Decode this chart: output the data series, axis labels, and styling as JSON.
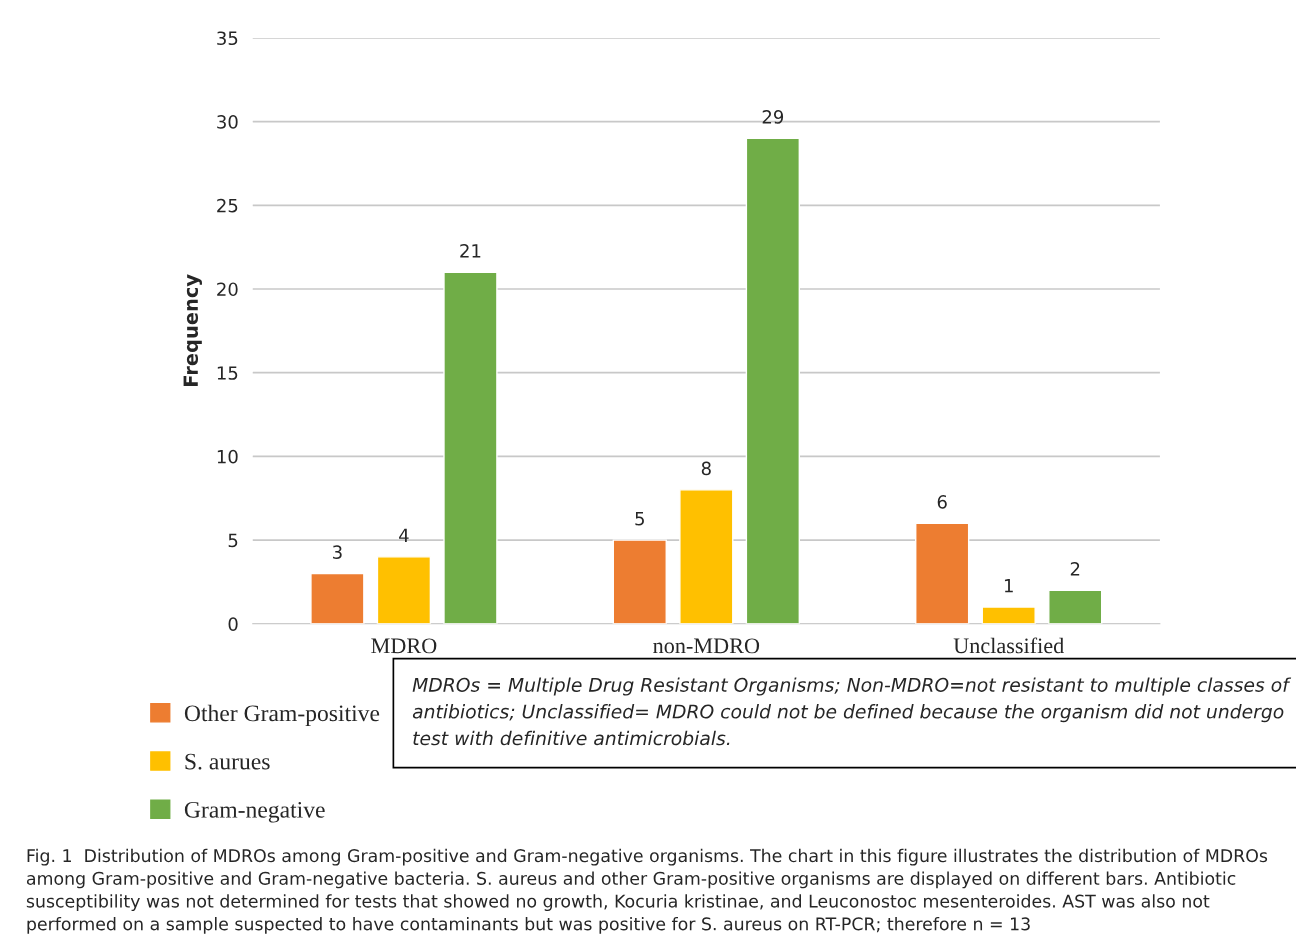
{
  "chart_data": {
    "type": "bar",
    "ylabel": "Frequency",
    "categories": [
      "MDRO",
      "non-MDRO",
      "Unclassified"
    ],
    "series": [
      {
        "name": "Other Gram-positive",
        "color": "#ed7d31",
        "values": [
          3,
          5,
          6
        ]
      },
      {
        "name": "S. aurues",
        "color": "#ffc000",
        "values": [
          4,
          8,
          1
        ]
      },
      {
        "name": "Gram-negative",
        "color": "#70ad47",
        "values": [
          21,
          29,
          2
        ]
      }
    ],
    "ylim": [
      0,
      35
    ],
    "yticks": [
      0,
      5,
      10,
      15,
      20,
      25,
      30,
      35
    ],
    "grid": "y",
    "data_labels": true,
    "legend": "bottom left",
    "annotations": [
      "MDROs = Multiple Drug Resistant Organisms; Non-MDRO=not resistant to multiple classes of antibiotics; Unclassified= MDRO could not be defined because the organism did not undergo test with definitive antimicrobials.",
      "Fig. 1  Distribution of MDROs among Gram-positive and Gram-negative organisms. The chart in this figure illustrates the distribution of MDROs among Gram-positive and Gram-negative bacteria. S. aureus and other Gram-positive organisms are displayed on different bars. Antibiotic susceptibility was not determined for tests that showed no growth, Kocuria kristinae, and Leuconostoc mesenteroides. AST was also not performed on a sample suspected to have contaminants but was positive for S. aureus on RT-PCR; therefore n = 13"
    ]
  }
}
